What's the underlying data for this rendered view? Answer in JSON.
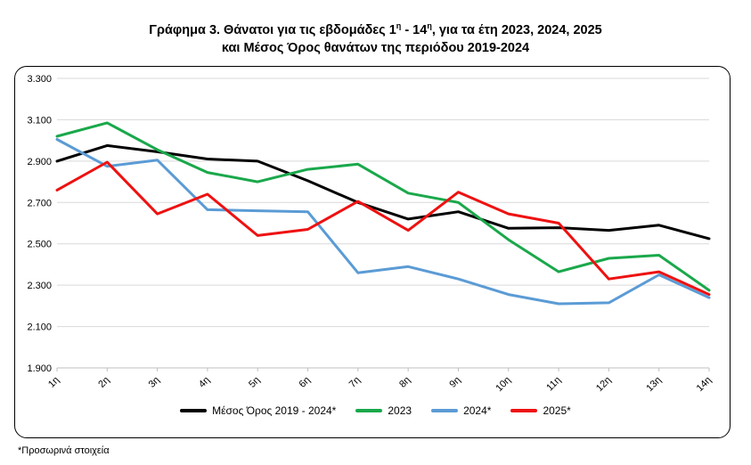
{
  "title": {
    "line1_a": "Γράφημα 3. Θάνατοι για τις εβδομάδες 1",
    "line1_sup1": "η",
    "line1_b": " - 14",
    "line1_sup2": "η",
    "line1_c": ", για τα έτη 2023, 2024, 2025",
    "line2": "και Μέσος Όρος θανάτων της περιόδου 2019-2024"
  },
  "footnote": "*Προσωρινά στοιχεία",
  "chart_data": {
    "type": "line",
    "categories": [
      "1η",
      "2η",
      "3η",
      "4η",
      "5η",
      "6η",
      "7η",
      "8η",
      "9η",
      "10η",
      "11η",
      "12η",
      "13η",
      "14η"
    ],
    "ylim": [
      1900,
      3300
    ],
    "yticks": [
      "1.900",
      "2.100",
      "2.300",
      "2.500",
      "2.700",
      "2.900",
      "3.100",
      "3.300"
    ],
    "ytick_values": [
      1900,
      2100,
      2300,
      2500,
      2700,
      2900,
      3100,
      3300
    ],
    "grid": true,
    "legend_position": "bottom",
    "series": [
      {
        "name": "Μέσος Όρος 2019 - 2024*",
        "color": "#000000",
        "values": [
          2900,
          2975,
          2945,
          2910,
          2900,
          2805,
          2700,
          2620,
          2655,
          2575,
          2578,
          2565,
          2590,
          2525
        ]
      },
      {
        "name": "2023",
        "color": "#1aa84b",
        "values": [
          3020,
          3085,
          2955,
          2845,
          2800,
          2860,
          2885,
          2745,
          2700,
          2520,
          2365,
          2430,
          2445,
          2275
        ]
      },
      {
        "name": "2024*",
        "color": "#5b9bd5",
        "values": [
          3005,
          2875,
          2905,
          2665,
          2660,
          2655,
          2360,
          2390,
          2330,
          2255,
          2210,
          2215,
          2350,
          2240
        ]
      },
      {
        "name": "2025*",
        "color": "#ee1111",
        "values": [
          2760,
          2895,
          2645,
          2740,
          2540,
          2570,
          2705,
          2565,
          2750,
          2645,
          2600,
          2330,
          2365,
          2255
        ]
      }
    ]
  }
}
